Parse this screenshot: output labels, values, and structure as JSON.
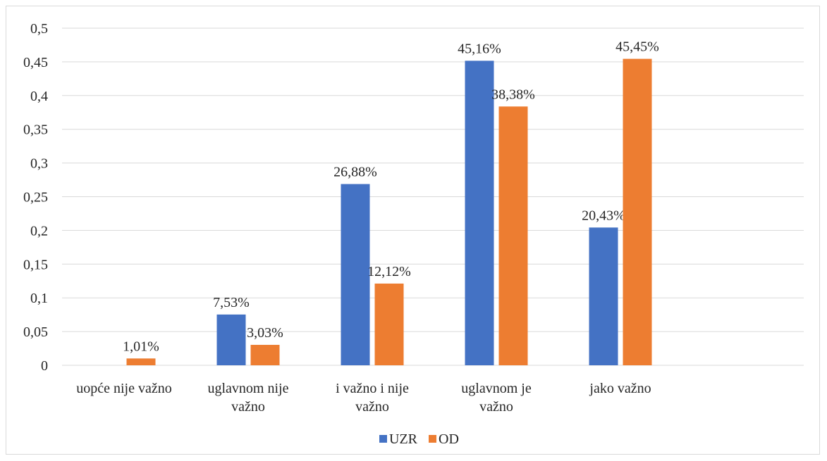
{
  "chart_data": {
    "type": "bar",
    "categories": [
      [
        "uopće nije važno"
      ],
      [
        "uglavnom nije",
        "važno"
      ],
      [
        "i važno i nije",
        "važno"
      ],
      [
        "uglavnom je",
        "važno"
      ],
      [
        "jako važno"
      ]
    ],
    "series": [
      {
        "name": "UZR",
        "color": "#4472c4",
        "values": [
          0,
          0.0753,
          0.2688,
          0.4516,
          0.2043
        ],
        "labels": [
          "",
          "7,53%",
          "26,88%",
          "45,16%",
          "20,43%"
        ]
      },
      {
        "name": "OD",
        "color": "#ed7d31",
        "values": [
          0.0101,
          0.0303,
          0.1212,
          0.3838,
          0.4545
        ],
        "labels": [
          "1,01%",
          "3,03%",
          "12,12%",
          "38,38%",
          "45,45%"
        ]
      }
    ],
    "y_ticks": [
      "0",
      "0,05",
      "0,1",
      "0,15",
      "0,2",
      "0,25",
      "0,3",
      "0,35",
      "0,4",
      "0,45",
      "0,5"
    ],
    "ylim": [
      0,
      0.5
    ],
    "grid": true,
    "legend_position": "bottom"
  }
}
